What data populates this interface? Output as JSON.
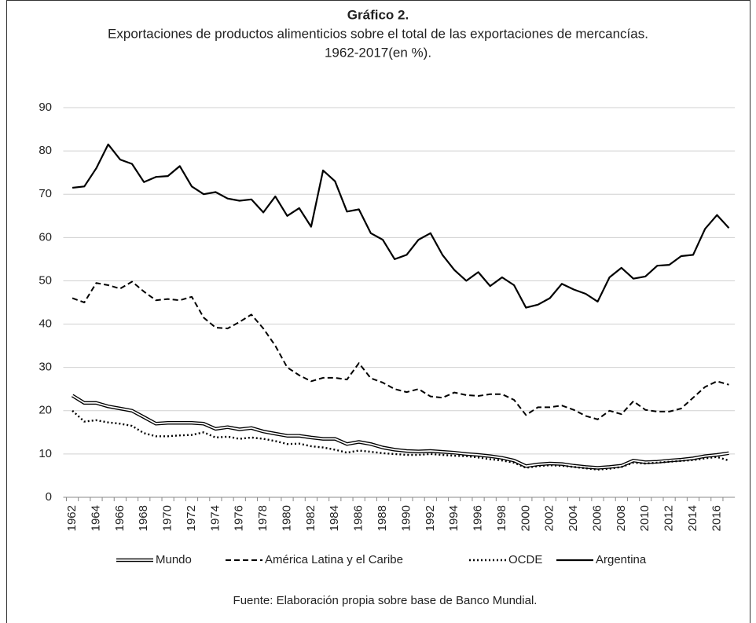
{
  "chart_data": {
    "type": "line",
    "title": "Gráfico 2.",
    "subtitle": [
      "Exportaciones de productos alimenticios sobre el total de las exportaciones de mercancías.",
      "1962-2017(en %)."
    ],
    "source": "Fuente: Elaboración propia sobre base de Banco Mundial.",
    "categories": [
      "1962",
      null,
      "1964",
      null,
      "1966",
      null,
      "1968",
      null,
      "1970",
      null,
      "1972",
      null,
      "1974",
      null,
      "1976",
      null,
      "1978",
      null,
      "1980",
      null,
      "1982",
      null,
      "1984",
      null,
      "1986",
      null,
      "1988",
      null,
      "1990",
      null,
      "1992",
      null,
      "1994",
      null,
      "1996",
      null,
      "1998",
      null,
      "2000",
      null,
      "2002",
      null,
      "2004",
      null,
      "2006",
      null,
      "2008",
      null,
      "2010",
      null,
      "2012",
      null,
      "2014",
      null,
      "2016",
      null
    ],
    "ylim": [
      0,
      90
    ],
    "yticks": [
      0,
      10,
      20,
      30,
      40,
      50,
      60,
      70,
      80,
      90
    ],
    "grid": true,
    "legend": "bottom",
    "series": [
      {
        "name": "Mundo",
        "color": "#000000",
        "style": "double",
        "values": [
          23.5,
          21.8,
          21.8,
          21,
          20.5,
          20,
          18.5,
          17,
          17.2,
          17.2,
          17.2,
          17,
          15.8,
          16.2,
          15.7,
          16,
          15.2,
          14.7,
          14.2,
          14.2,
          13.8,
          13.5,
          13.5,
          12.3,
          12.8,
          12.3,
          11.5,
          11,
          10.7,
          10.6,
          10.7,
          10.5,
          10.3,
          10,
          9.8,
          9.5,
          9.1,
          8.5,
          7.2,
          7.6,
          7.8,
          7.7,
          7.3,
          7,
          6.8,
          7,
          7.3,
          8.5,
          8.1,
          8.2,
          8.5,
          8.7,
          9,
          9.5,
          9.8,
          10.2
        ]
      },
      {
        "name": "América Latina y el Caribe",
        "color": "#000000",
        "style": "dashed",
        "values": [
          46,
          45,
          49.5,
          49,
          48.2,
          49.8,
          47.5,
          45.5,
          45.8,
          45.5,
          46.3,
          41.5,
          39.2,
          39,
          40.5,
          42.2,
          39,
          35,
          30,
          28.2,
          26.8,
          27.6,
          27.6,
          27.2,
          31,
          27.5,
          26.5,
          25,
          24.3,
          25,
          23.3,
          23,
          24.2,
          23.6,
          23.4,
          23.8,
          23.8,
          22.5,
          19,
          20.8,
          20.8,
          21.2,
          20.2,
          18.8,
          18,
          20,
          19.2,
          22.2,
          20.2,
          19.8,
          19.8,
          20.5,
          23,
          25.5,
          26.8,
          26
        ]
      },
      {
        "name": "OCDE",
        "color": "#000000",
        "style": "dotted",
        "values": [
          20,
          17.5,
          17.8,
          17.3,
          17,
          16.5,
          14.8,
          14.1,
          14.1,
          14.3,
          14.4,
          15,
          13.8,
          14,
          13.5,
          13.8,
          13.5,
          13,
          12.3,
          12.4,
          11.8,
          11.5,
          11,
          10.3,
          10.8,
          10.5,
          10.2,
          10,
          9.8,
          9.8,
          10,
          9.8,
          9.6,
          9.5,
          9.2,
          8.8,
          8.5,
          8,
          6.8,
          7.2,
          7.4,
          7.3,
          7,
          6.7,
          6.4,
          6.6,
          7,
          8,
          7.8,
          8,
          8.2,
          8.4,
          8.6,
          9,
          9.3,
          8.5
        ]
      },
      {
        "name": "Argentina",
        "color": "#000000",
        "style": "solid",
        "values": [
          71.5,
          71.8,
          76,
          81.5,
          78,
          77,
          72.8,
          74,
          74.2,
          76.5,
          71.8,
          70,
          70.5,
          69,
          68.5,
          68.8,
          65.8,
          69.5,
          65,
          66.8,
          62.5,
          75.5,
          73,
          66,
          66.5,
          61,
          59.5,
          55,
          56,
          59.5,
          61,
          56,
          52.5,
          50,
          52,
          48.8,
          50.8,
          49,
          43.8,
          44.5,
          46,
          49.3,
          48,
          47,
          45.2,
          50.8,
          53,
          50.5,
          51,
          53.5,
          53.7,
          55.7,
          56,
          62,
          65.2,
          62.2
        ]
      }
    ]
  }
}
